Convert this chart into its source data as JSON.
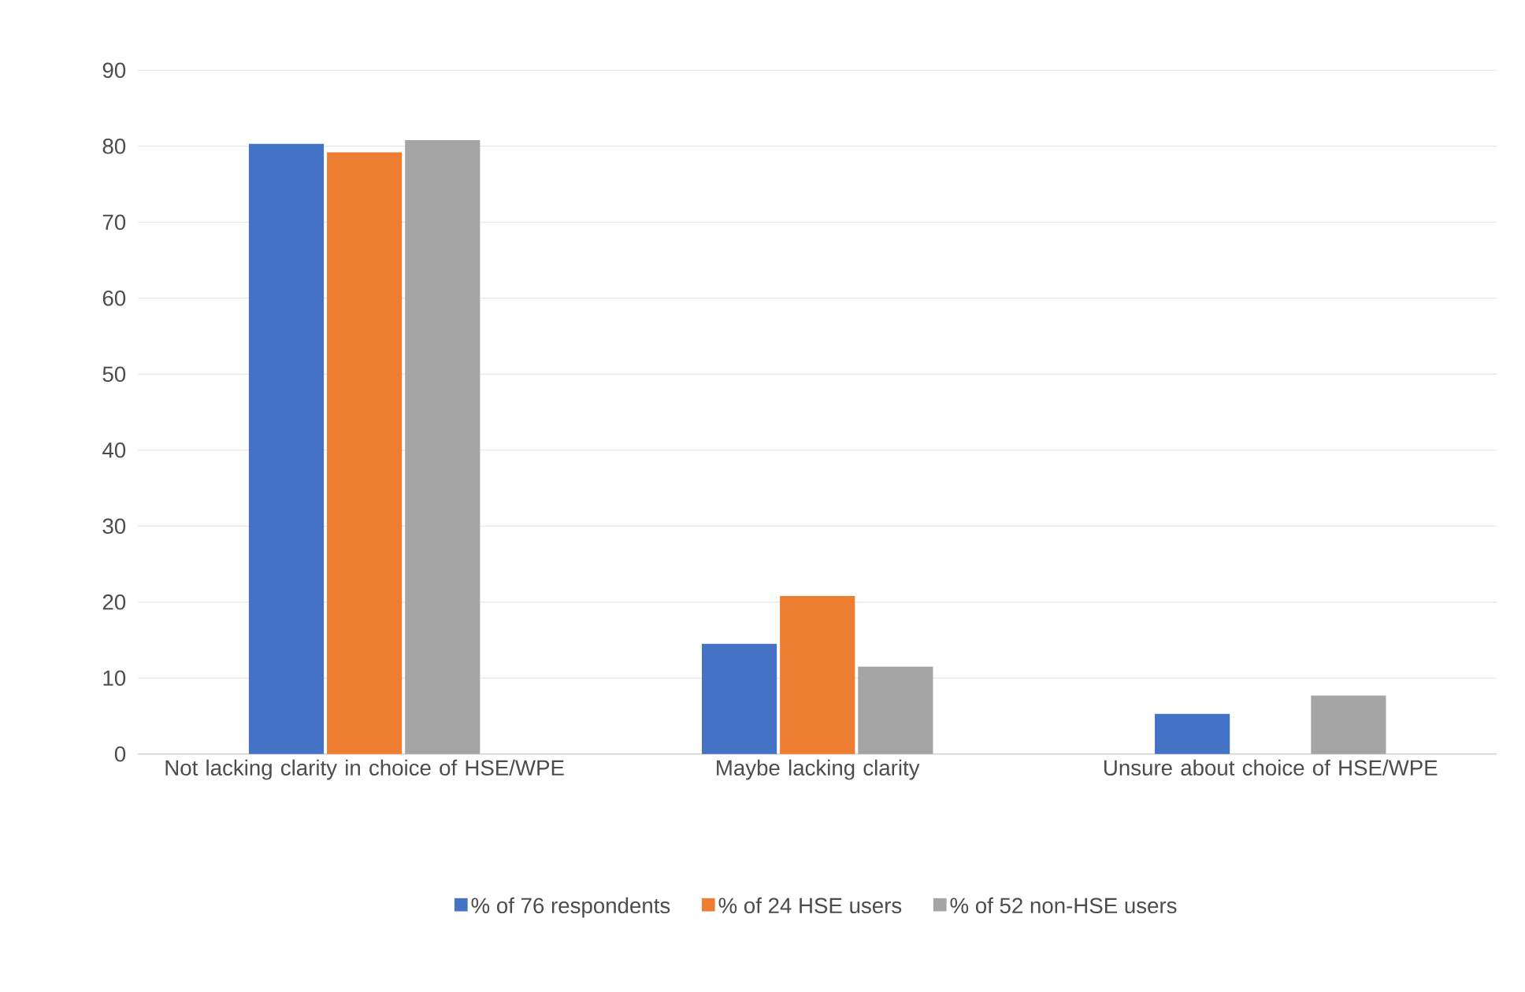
{
  "chart_data": {
    "type": "bar",
    "categories": [
      "Not lacking clarity in choice of HSE/WPE",
      "Maybe lacking clarity",
      "Unsure about choice of HSE/WPE"
    ],
    "series": [
      {
        "name": "% of 76 respondents",
        "color": "#4472c4",
        "values": [
          80.3,
          14.5,
          5.3
        ]
      },
      {
        "name": "% of 24 HSE users",
        "color": "#ed7d31",
        "values": [
          79.2,
          20.8,
          0
        ]
      },
      {
        "name": "% of 52 non-HSE users",
        "color": "#a5a5a5",
        "values": [
          80.8,
          11.5,
          7.7
        ]
      }
    ],
    "ylim": [
      0,
      90
    ],
    "yticks": [
      0,
      10,
      20,
      30,
      40,
      50,
      60,
      70,
      80,
      90
    ],
    "grid": "y",
    "legend": "bottom"
  }
}
